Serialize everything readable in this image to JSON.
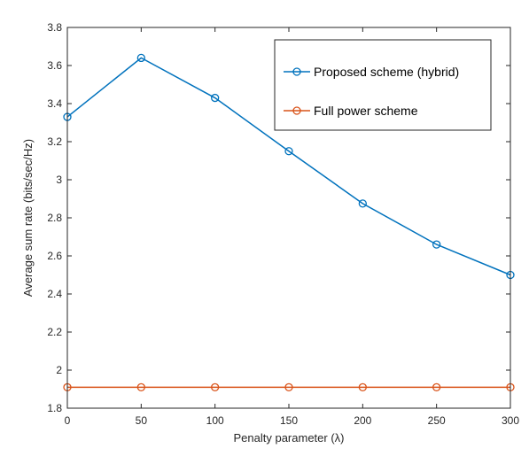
{
  "chart_data": {
    "type": "line",
    "xlabel": "Penalty parameter (λ)",
    "ylabel": "Average sum rate (bits/sec/Hz)",
    "xlim": [
      0,
      300
    ],
    "ylim": [
      1.8,
      3.8
    ],
    "xticks": [
      0,
      50,
      100,
      150,
      200,
      250,
      300
    ],
    "xtick_labels": [
      "0",
      "50",
      "100",
      "150",
      "200",
      "250",
      "300"
    ],
    "yticks": [
      1.8,
      2.0,
      2.2,
      2.4,
      2.6,
      2.8,
      3.0,
      3.2,
      3.4,
      3.6,
      3.8
    ],
    "ytick_labels": [
      "1.8",
      "2",
      "2.2",
      "2.4",
      "2.6",
      "2.8",
      "3",
      "3.2",
      "3.4",
      "3.6",
      "3.8"
    ],
    "grid": false,
    "legend_position": "top-right",
    "x": [
      0,
      50,
      100,
      150,
      200,
      250,
      300
    ],
    "series": [
      {
        "name": "Proposed scheme (hybrid)",
        "color": "#0072BD",
        "marker": "circle",
        "values": [
          3.33,
          3.64,
          3.43,
          3.15,
          2.875,
          2.66,
          2.5
        ]
      },
      {
        "name": "Full power scheme",
        "color": "#D95319",
        "marker": "circle",
        "values": [
          1.91,
          1.91,
          1.91,
          1.91,
          1.91,
          1.91,
          1.91
        ]
      }
    ]
  }
}
